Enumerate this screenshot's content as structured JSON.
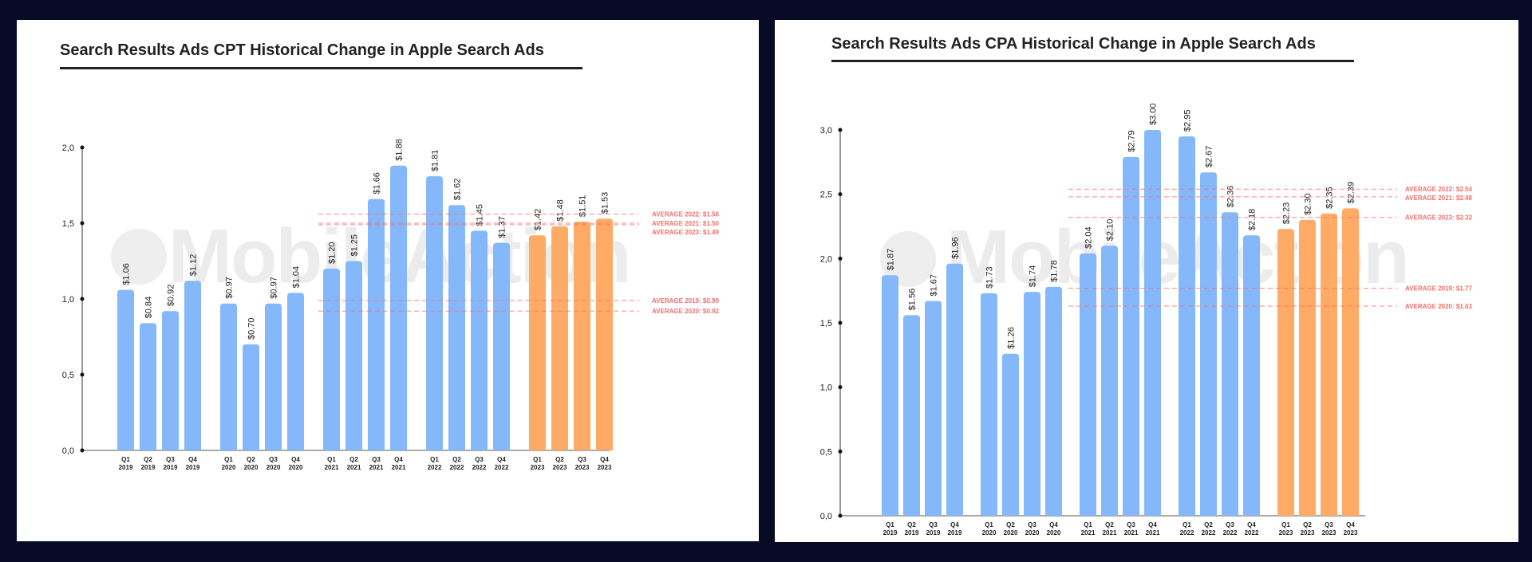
{
  "chart_data": [
    {
      "type": "bar",
      "title": "Search Results Ads CPT Historical Change in Apple Search Ads",
      "xlabel": "",
      "ylabel": "",
      "ylim": [
        0,
        2
      ],
      "y_ticks": [
        "0,0",
        "0,5",
        "1,0",
        "1,5",
        "2,0"
      ],
      "y_tick_values": [
        0,
        0.5,
        1,
        1.5,
        2
      ],
      "watermark": "MobileAction",
      "categories": [
        "Q1 2019",
        "Q2 2019",
        "Q3 2019",
        "Q4 2019",
        "Q1 2020",
        "Q2 2020",
        "Q3 2020",
        "Q4 2020",
        "Q1 2021",
        "Q2 2021",
        "Q3 2021",
        "Q4 2021",
        "Q1 2022",
        "Q2 2022",
        "Q3 2022",
        "Q4 2022",
        "Q1 2023",
        "Q2 2023",
        "Q3 2023",
        "Q4 2023"
      ],
      "category_quarters": [
        "Q1",
        "Q2",
        "Q3",
        "Q4",
        "Q1",
        "Q2",
        "Q3",
        "Q4",
        "Q1",
        "Q2",
        "Q3",
        "Q4",
        "Q1",
        "Q2",
        "Q3",
        "Q4",
        "Q1",
        "Q2",
        "Q3",
        "Q4"
      ],
      "category_years": [
        "2019",
        "2019",
        "2019",
        "2019",
        "2020",
        "2020",
        "2020",
        "2020",
        "2021",
        "2021",
        "2021",
        "2021",
        "2022",
        "2022",
        "2022",
        "2022",
        "2023",
        "2023",
        "2023",
        "2023"
      ],
      "values": [
        1.06,
        0.84,
        0.92,
        1.12,
        0.97,
        0.7,
        0.97,
        1.04,
        1.2,
        1.25,
        1.66,
        1.88,
        1.81,
        1.62,
        1.45,
        1.37,
        1.42,
        1.48,
        1.51,
        1.53
      ],
      "value_labels": [
        "$1.06",
        "$0.84",
        "$0.92",
        "$1.12",
        "$0.97",
        "$0.70",
        "$0.97",
        "$1.04",
        "$1.20",
        "$1.25",
        "$1.66",
        "$1.88",
        "$1.81",
        "$1.62",
        "$1.45",
        "$1.37",
        "$1.42",
        "$1.48",
        "$1.51",
        "$1.53"
      ],
      "averages": [
        {
          "label": "AVERAGE 2022: $1.56",
          "value": 1.56,
          "year": "2022"
        },
        {
          "label": "AVERAGE 2021: $1.50",
          "value": 1.5,
          "year": "2021"
        },
        {
          "label": "AVERAGE 2023: $1.49",
          "value": 1.49,
          "year": "2023"
        },
        {
          "label": "AVERAGE 2019: $0.99",
          "value": 0.99,
          "year": "2019"
        },
        {
          "label": "AVERAGE 2020: $0.92",
          "value": 0.92,
          "year": "2020"
        }
      ],
      "colors": {
        "past": "#85b8fb",
        "current": "#ffab66",
        "average": "#f36d6d"
      }
    },
    {
      "type": "bar",
      "title": "Search Results Ads CPA Historical Change in Apple Search Ads",
      "xlabel": "",
      "ylabel": "",
      "ylim": [
        0,
        3
      ],
      "y_ticks": [
        "0,0",
        "0,5",
        "1,0",
        "1,5",
        "2,0",
        "2,5",
        "3,0"
      ],
      "y_tick_values": [
        0,
        0.5,
        1,
        1.5,
        2,
        2.5,
        3
      ],
      "watermark": "MobileAction",
      "categories": [
        "Q1 2019",
        "Q2 2019",
        "Q3 2019",
        "Q4 2019",
        "Q1 2020",
        "Q2 2020",
        "Q3 2020",
        "Q4 2020",
        "Q1 2021",
        "Q2 2021",
        "Q3 2021",
        "Q4 2021",
        "Q1 2022",
        "Q2 2022",
        "Q3 2022",
        "Q4 2022",
        "Q1 2023",
        "Q2 2023",
        "Q3 2023",
        "Q4 2023"
      ],
      "category_quarters": [
        "Q1",
        "Q2",
        "Q3",
        "Q4",
        "Q1",
        "Q2",
        "Q3",
        "Q4",
        "Q1",
        "Q2",
        "Q3",
        "Q4",
        "Q1",
        "Q2",
        "Q3",
        "Q4",
        "Q1",
        "Q2",
        "Q3",
        "Q4"
      ],
      "category_years": [
        "2019",
        "2019",
        "2019",
        "2019",
        "2020",
        "2020",
        "2020",
        "2020",
        "2021",
        "2021",
        "2021",
        "2021",
        "2022",
        "2022",
        "2022",
        "2022",
        "2023",
        "2023",
        "2023",
        "2023"
      ],
      "values": [
        1.87,
        1.56,
        1.67,
        1.96,
        1.73,
        1.26,
        1.74,
        1.78,
        2.04,
        2.1,
        2.79,
        3.0,
        2.95,
        2.67,
        2.36,
        2.18,
        2.23,
        2.3,
        2.35,
        2.39
      ],
      "value_labels": [
        "$1.87",
        "$1.56",
        "$1.67",
        "$1.96",
        "$1.73",
        "$1.26",
        "$1.74",
        "$1.78",
        "$2.04",
        "$2.10",
        "$2.79",
        "$3.00",
        "$2.95",
        "$2.67",
        "$2.36",
        "$2.18",
        "$2.23",
        "$2.30",
        "$2.35",
        "$2.39"
      ],
      "averages": [
        {
          "label": "AVERAGE 2022: $2.54",
          "value": 2.54,
          "year": "2022"
        },
        {
          "label": "AVERAGE 2021: $2.48",
          "value": 2.48,
          "year": "2021"
        },
        {
          "label": "AVERAGE 2023: $2.32",
          "value": 2.32,
          "year": "2023"
        },
        {
          "label": "AVERAGE 2019: $1.77",
          "value": 1.77,
          "year": "2019"
        },
        {
          "label": "AVERAGE 2020: $1.63",
          "value": 1.63,
          "year": "2020"
        }
      ],
      "colors": {
        "past": "#85b8fb",
        "current": "#ffab66",
        "average": "#f36d6d"
      }
    }
  ]
}
